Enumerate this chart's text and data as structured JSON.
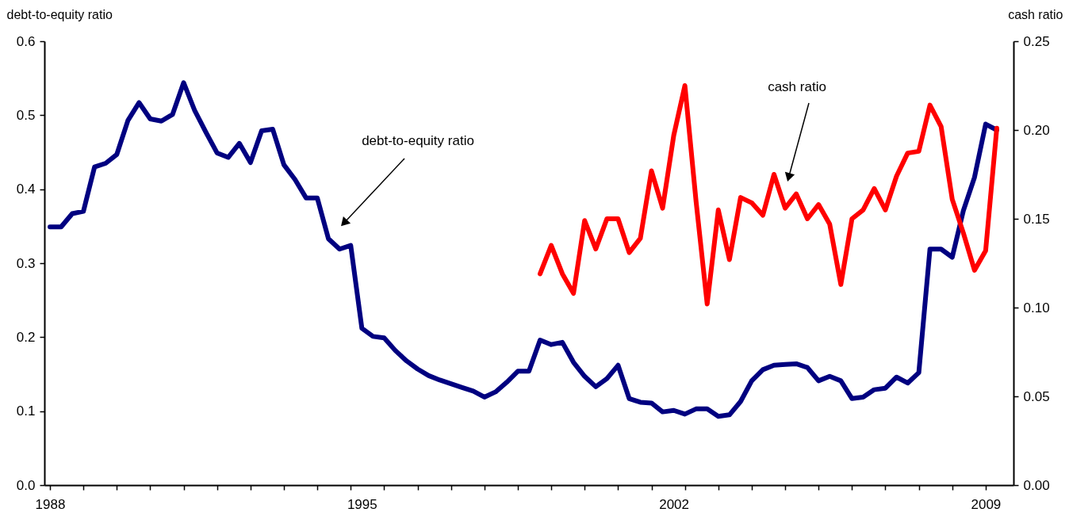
{
  "chart_data": {
    "type": "line",
    "ylabel": "debt-to-equity ratio",
    "y2label": "cash ratio",
    "categories": [
      "1988",
      null,
      null,
      null,
      null,
      null,
      null,
      null,
      null,
      null,
      null,
      null,
      null,
      null,
      null,
      null,
      null,
      null,
      null,
      null,
      null,
      null,
      null,
      null,
      null,
      null,
      null,
      null,
      "1995",
      null,
      null,
      null,
      null,
      null,
      null,
      null,
      null,
      null,
      null,
      null,
      null,
      null,
      null,
      null,
      null,
      null,
      null,
      null,
      null,
      null,
      null,
      null,
      null,
      null,
      null,
      null,
      "2002",
      null,
      null,
      null,
      null,
      null,
      null,
      null,
      null,
      null,
      null,
      null,
      null,
      null,
      null,
      null,
      null,
      null,
      null,
      null,
      null,
      null,
      null,
      null,
      null,
      null,
      null,
      null,
      "2009",
      null,
      null
    ],
    "series": [
      {
        "color": "#000080",
        "axis": "y",
        "values": [
          0.349,
          0.349,
          0.367,
          0.37,
          0.43,
          0.435,
          0.447,
          0.493,
          0.517,
          0.495,
          0.492,
          0.501,
          0.544,
          0.506,
          0.477,
          0.449,
          0.443,
          0.462,
          0.436,
          0.479,
          0.481,
          0.433,
          0.413,
          0.388,
          0.388,
          0.333,
          0.319,
          0.324,
          0.212,
          0.201,
          0.199,
          0.182,
          0.168,
          0.157,
          0.148,
          0.142,
          0.137,
          0.132,
          0.127,
          0.119,
          0.126,
          0.139,
          0.154,
          0.154,
          0.196,
          0.19,
          0.193,
          0.166,
          0.147,
          0.133,
          0.144,
          0.162,
          0.117,
          0.112,
          0.111,
          0.099,
          0.101,
          0.096,
          0.103,
          0.103,
          0.093,
          0.095,
          0.113,
          0.141,
          0.156,
          0.162,
          0.163,
          0.164,
          0.159,
          0.141,
          0.147,
          0.141,
          0.117,
          0.119,
          0.129,
          0.131,
          0.146,
          0.138,
          0.152,
          0.319,
          0.319,
          0.308,
          0.371,
          0.416,
          0.488,
          0.48,
          null
        ]
      },
      {
        "color": "#ff0000",
        "axis": "y2",
        "values": [
          null,
          null,
          null,
          null,
          null,
          null,
          null,
          null,
          null,
          null,
          null,
          null,
          null,
          null,
          null,
          null,
          null,
          null,
          null,
          null,
          null,
          null,
          null,
          null,
          null,
          null,
          null,
          null,
          null,
          null,
          null,
          null,
          null,
          null,
          null,
          null,
          null,
          null,
          null,
          null,
          null,
          null,
          null,
          null,
          0.119,
          0.135,
          0.119,
          0.108,
          0.149,
          0.133,
          0.15,
          0.15,
          0.131,
          0.139,
          0.177,
          0.156,
          0.197,
          0.225,
          0.16,
          0.102,
          0.155,
          0.127,
          0.162,
          0.159,
          0.152,
          0.175,
          0.156,
          0.164,
          0.15,
          0.158,
          0.147,
          0.113,
          0.15,
          0.155,
          0.167,
          0.155,
          0.174,
          0.187,
          0.188,
          0.214,
          0.202,
          0.161,
          0.142,
          0.121,
          0.132,
          0.201,
          null
        ]
      }
    ],
    "ylim": [
      0,
      0.6
    ],
    "yticks": [
      {
        "value": 0,
        "label": "0.0"
      },
      0.1,
      0.2,
      0.3,
      0.4,
      0.5,
      0.6
    ],
    "y2lim": [
      0,
      0.25
    ],
    "y2ticks": [
      {
        "value": 0,
        "label": "0.00"
      },
      0.05,
      {
        "value": 0.1,
        "label": "0.10"
      },
      0.15,
      {
        "value": 0.2,
        "label": "0.20"
      },
      0.25
    ],
    "annotations": [
      "debt-to-equity ratio",
      "cash ratio"
    ],
    "grid": false,
    "marker": "none",
    "line_style": "solid"
  }
}
